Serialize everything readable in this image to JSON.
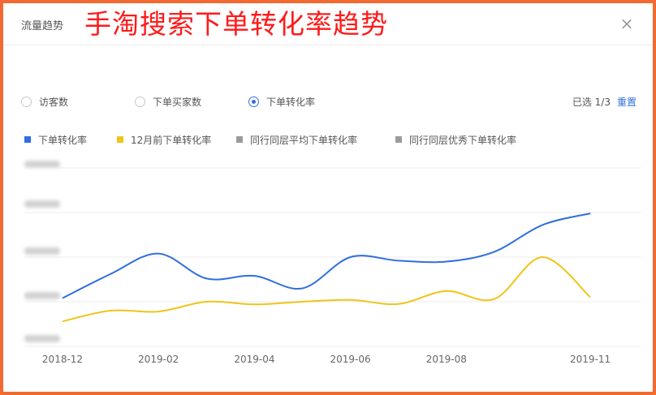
{
  "panel": {
    "title": "流量趋势",
    "overlay_title": "手淘搜索下单转化率趋势",
    "close_label": "×"
  },
  "metrics": {
    "options": [
      {
        "label": "访客数",
        "selected": false
      },
      {
        "label": "下单买家数",
        "selected": false
      },
      {
        "label": "下单转化率",
        "selected": true
      }
    ],
    "selected_label": "已选 1/3",
    "reset_label": "重置"
  },
  "legend": [
    {
      "label": "下单转化率",
      "color": "#2f6fde"
    },
    {
      "label": "12月前下单转化率",
      "color": "#f0c419"
    },
    {
      "label": "同行同层平均下单转化率",
      "color": "#9b9b9b"
    },
    {
      "label": "同行同层优秀下单转化率",
      "color": "#9b9b9b"
    }
  ],
  "chart_data": {
    "type": "line",
    "x": [
      "2018-12",
      "2019-01",
      "2019-02",
      "2019-03",
      "2019-04",
      "2019-05",
      "2019-06",
      "2019-07",
      "2019-08",
      "2019-09",
      "2019-10",
      "2019-11"
    ],
    "x_tick_labels": [
      "2018-12",
      "2019-02",
      "2019-04",
      "2019-06",
      "2019-08",
      "2019-11"
    ],
    "y_tick_labels_blurred": true,
    "y_scale_note": "relative (y-axis labels blurred in source)",
    "grid": true,
    "series": [
      {
        "name": "下单转化率",
        "color": "#2f6fde",
        "values": [
          1.08,
          1.62,
          2.08,
          1.52,
          1.58,
          1.3,
          2.0,
          1.92,
          1.9,
          2.12,
          2.72,
          2.98
        ]
      },
      {
        "name": "12月前下单转化率",
        "color": "#f0c419",
        "values": [
          0.56,
          0.8,
          0.78,
          1.0,
          0.94,
          1.0,
          1.04,
          0.95,
          1.24,
          1.06,
          2.0,
          1.1
        ]
      }
    ],
    "ylim": [
      0,
      4
    ]
  }
}
